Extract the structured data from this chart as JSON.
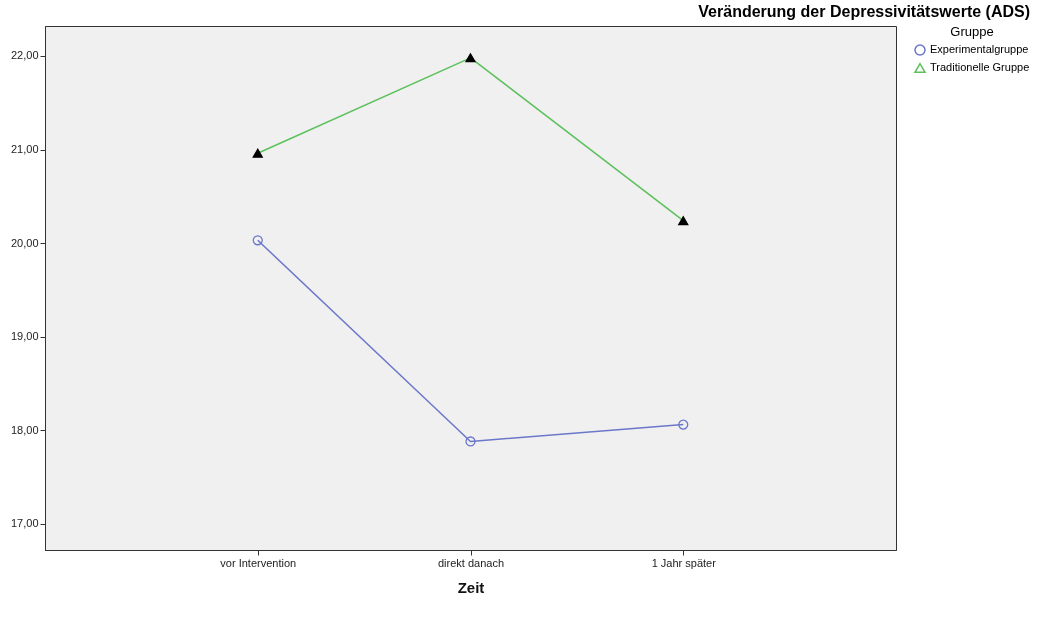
{
  "chart_data": {
    "type": "line",
    "title": "Veränderung der Depressivitätswerte (ADS)",
    "xlabel": "Zeit",
    "legend_title": "Gruppe",
    "legend": "top right",
    "grid": false,
    "categories": [
      "vor Intervention",
      "direkt danach",
      "1 Jahr später"
    ],
    "series": [
      {
        "name": "Experimentalgruppe",
        "color": "#6b77c9",
        "marker": "circle",
        "values": [
          20.03,
          17.88,
          18.06
        ]
      },
      {
        "name": "Traditionelle Gruppe",
        "color": "#5cc15c",
        "marker": "triangle",
        "values": [
          20.96,
          21.98,
          20.24
        ]
      }
    ],
    "ylim": [
      16.72,
      22.32
    ],
    "yticks": [
      {
        "value": 17,
        "label": "17,00"
      },
      {
        "value": 18,
        "label": "18,00"
      },
      {
        "value": 19,
        "label": "19,00"
      },
      {
        "value": 20,
        "label": "20,00"
      },
      {
        "value": 21,
        "label": "21,00"
      },
      {
        "value": 22,
        "label": "22,00"
      }
    ]
  }
}
